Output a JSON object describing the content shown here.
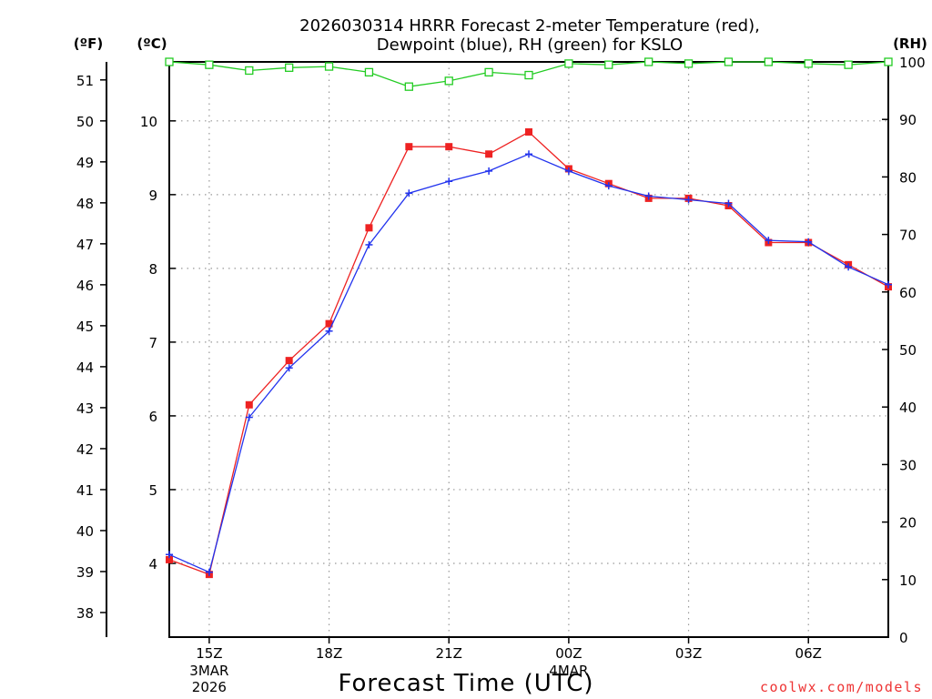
{
  "chart_data": {
    "type": "line",
    "title_line1": "2026030314 HRRR Forecast 2-meter Temperature (red),",
    "title_line2": "Dewpoint (blue), RH (green) for KSLO",
    "xlabel": "Forecast Time (UTC)",
    "watermark": "coolwx.com/models",
    "units": {
      "f": "(ºF)",
      "c": "(ºC)",
      "rh": "(RH)"
    },
    "x_hours": [
      14,
      15,
      16,
      17,
      18,
      19,
      20,
      21,
      22,
      23,
      0,
      1,
      2,
      3,
      4,
      5,
      6,
      7,
      8
    ],
    "x_ticks": [
      {
        "hour_index": 1,
        "label": "15Z",
        "sub1": "3MAR",
        "sub2": "2026"
      },
      {
        "hour_index": 4,
        "label": "18Z",
        "sub1": "",
        "sub2": ""
      },
      {
        "hour_index": 7,
        "label": "21Z",
        "sub1": "",
        "sub2": ""
      },
      {
        "hour_index": 10,
        "label": "00Z",
        "sub1": "4MAR",
        "sub2": ""
      },
      {
        "hour_index": 13,
        "label": "03Z",
        "sub1": "",
        "sub2": ""
      },
      {
        "hour_index": 16,
        "label": "06Z",
        "sub1": "",
        "sub2": ""
      }
    ],
    "y_left_c": {
      "min": 3.0,
      "max": 10.8,
      "ticks": [
        4,
        5,
        6,
        7,
        8,
        9,
        10
      ]
    },
    "y_left_f": {
      "ticks": [
        38,
        39,
        40,
        41,
        42,
        43,
        44,
        45,
        46,
        47,
        48,
        49,
        50,
        51
      ]
    },
    "y_right_rh": {
      "min": 0,
      "max": 100,
      "ticks": [
        0,
        10,
        20,
        30,
        40,
        50,
        60,
        70,
        80,
        90,
        100
      ]
    },
    "grid": true,
    "series": [
      {
        "name": "Temperature",
        "color": "#ee2222",
        "marker": "filled-square",
        "axis": "c",
        "values": [
          4.05,
          3.85,
          6.15,
          6.75,
          7.25,
          8.55,
          9.65,
          9.65,
          9.55,
          9.85,
          9.35,
          9.15,
          8.95,
          8.95,
          8.85,
          8.35,
          8.35,
          8.05,
          7.75
        ]
      },
      {
        "name": "Dewpoint",
        "color": "#2233ee",
        "marker": "plus",
        "axis": "c",
        "values": [
          4.12,
          3.88,
          5.98,
          6.65,
          7.15,
          8.32,
          9.02,
          9.18,
          9.32,
          9.55,
          9.32,
          9.12,
          8.98,
          8.93,
          8.88,
          8.38,
          8.36,
          8.02,
          7.78
        ]
      },
      {
        "name": "RH",
        "color": "#22cc22",
        "marker": "open-square",
        "axis": "rh",
        "values": [
          100,
          99.5,
          98.5,
          99,
          99.2,
          98.2,
          95.7,
          96.7,
          98.2,
          97.7,
          99.7,
          99.5,
          100,
          99.7,
          100,
          100,
          99.7,
          99.5,
          100
        ]
      }
    ]
  }
}
